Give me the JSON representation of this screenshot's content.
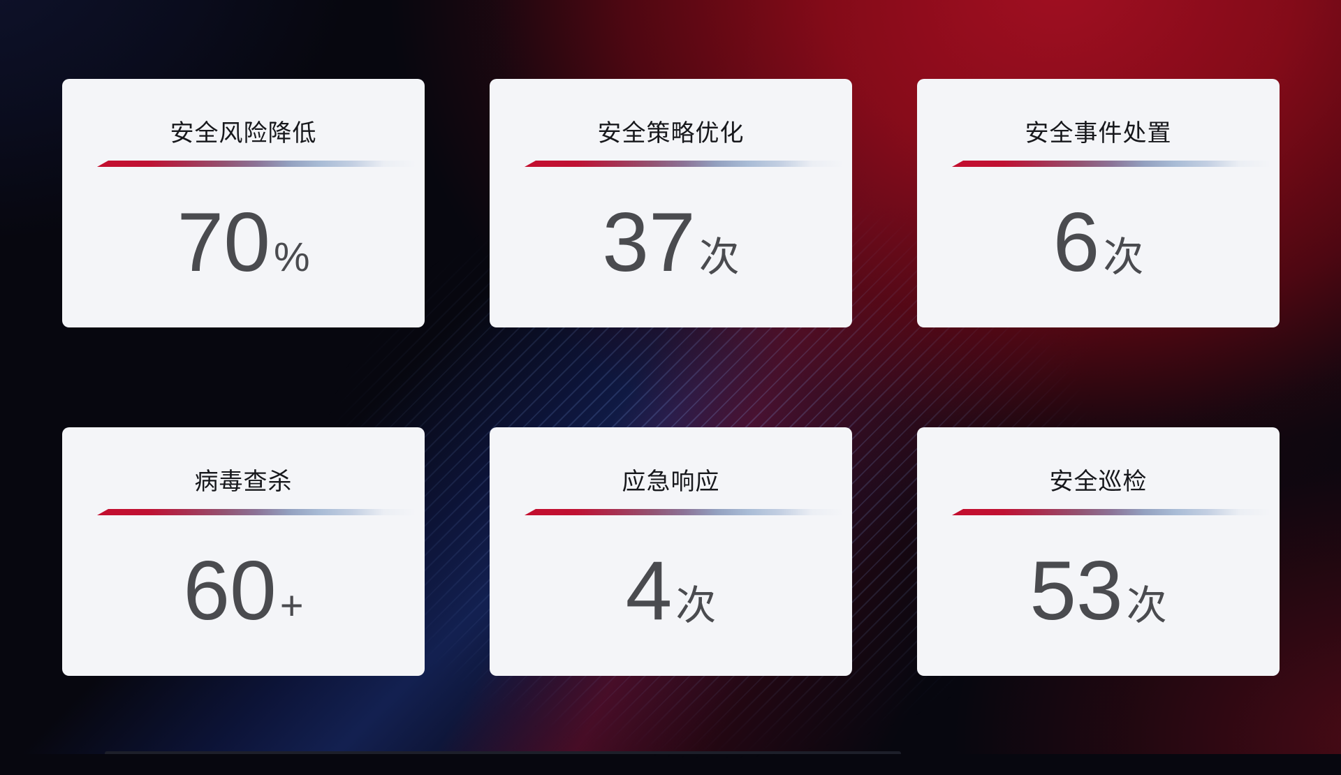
{
  "cards": [
    {
      "title": "安全风险降低",
      "value": "70",
      "suffix": "%"
    },
    {
      "title": "安全策略优化",
      "value": "37",
      "suffix": "次"
    },
    {
      "title": "安全事件处置",
      "value": "6",
      "suffix": "次"
    },
    {
      "title": "病毒查杀",
      "value": "60",
      "suffix": "+"
    },
    {
      "title": "应急响应",
      "value": "4",
      "suffix": "次"
    },
    {
      "title": "安全巡检",
      "value": "53",
      "suffix": "次"
    }
  ],
  "colors": {
    "card_background": "#f4f5f8",
    "title_text": "#17181c",
    "value_text": "#4a4b4f",
    "divider_red": "#c30e2e",
    "divider_blue": "#a9bcd6",
    "background_red_glow": "#8a0b18",
    "background_blue_band": "#203c98",
    "background_base": "#07070f"
  }
}
